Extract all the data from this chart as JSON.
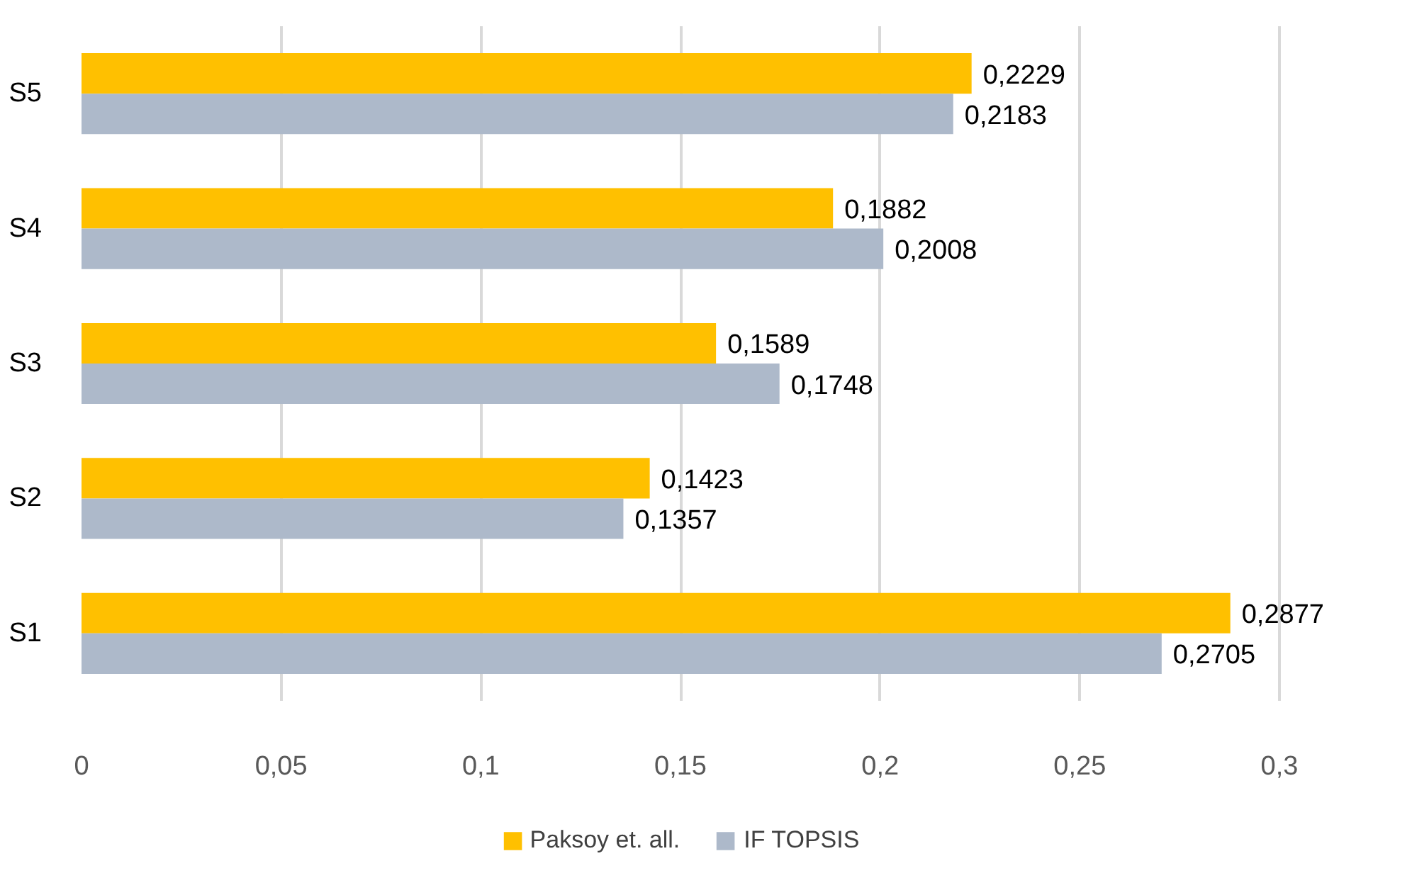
{
  "chart_data": {
    "type": "bar",
    "orientation": "horizontal",
    "categories": [
      "S5",
      "S4",
      "S3",
      "S2",
      "S1"
    ],
    "series": [
      {
        "name": "Paksoy et. all.",
        "color": "#ffc000",
        "values": [
          0.2229,
          0.1882,
          0.1589,
          0.1423,
          0.2877
        ],
        "value_labels": [
          "0,2229",
          "0,1882",
          "0,1589",
          "0,1423",
          "0,2877"
        ]
      },
      {
        "name": "IF TOPSIS",
        "color": "#adb9ca",
        "values": [
          0.2183,
          0.2008,
          0.1748,
          0.1357,
          0.2705
        ],
        "value_labels": [
          "0,2183",
          "0,2008",
          "0,1748",
          "0,1357",
          "0,2705"
        ]
      }
    ],
    "xlim": [
      0,
      0.3
    ],
    "xticks": [
      0,
      {
        "value": 0.05,
        "label": "0,05"
      },
      {
        "value": 0.1,
        "label": "0,1"
      },
      {
        "value": 0.15,
        "label": "0,15"
      },
      {
        "value": 0.2,
        "label": "0,2"
      },
      {
        "value": 0.25,
        "label": "0,25"
      },
      {
        "value": 0.3,
        "label": "0,3"
      }
    ],
    "grid": "x",
    "legend": "bottom"
  }
}
